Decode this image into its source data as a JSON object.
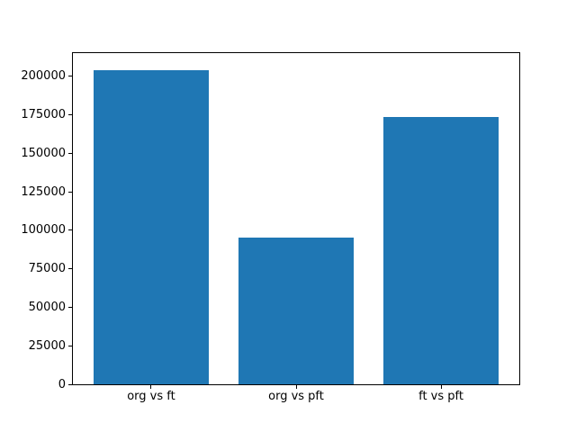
{
  "chart_data": {
    "type": "bar",
    "title": "",
    "xlabel": "",
    "ylabel": "",
    "categories": [
      "org vs ft",
      "org vs pft",
      "ft vs pft"
    ],
    "values": [
      204000,
      95000,
      173500
    ],
    "yticks": [
      0,
      25000,
      50000,
      75000,
      100000,
      125000,
      150000,
      175000,
      200000
    ],
    "ylim": [
      0,
      215000
    ],
    "xlim": [
      -0.54,
      2.54
    ],
    "bar_width": 0.8,
    "bar_color": "#1f77b4",
    "frame_color": "#000000",
    "background_color": "#ffffff",
    "grid": false,
    "legend": "none"
  }
}
